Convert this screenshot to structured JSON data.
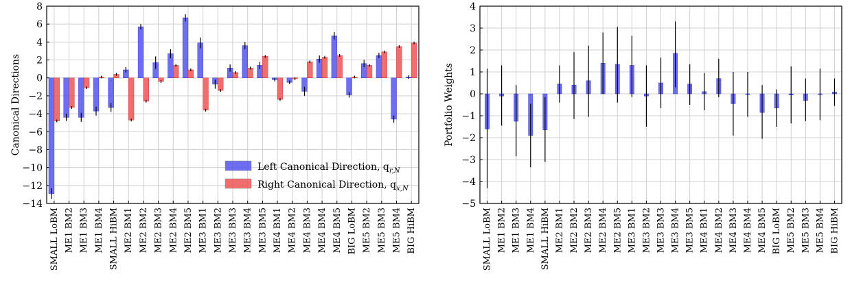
{
  "categories": [
    "SMALL LoBM",
    "ME1 BM2",
    "ME1 BM3",
    "ME1 BM4",
    "SMALL HiBM",
    "ME2 BM1",
    "ME2 BM2",
    "ME2 BM3",
    "ME2 BM4",
    "ME2 BM5",
    "ME3 BM1",
    "ME3 BM2",
    "ME3 BM3",
    "ME3 BM4",
    "ME3 BM5",
    "ME4 BM1",
    "ME4 BM2",
    "ME4 BM3",
    "ME4 BM4",
    "ME4 BM5",
    "BIG LoBM",
    "ME5 BM2",
    "ME5 BM3",
    "ME5 BM4",
    "BIG HiBM"
  ],
  "colors": {
    "left": "#5555ee",
    "right": "#ee5555",
    "weights": "#5555ee"
  },
  "chart_data": [
    {
      "type": "bar",
      "ylabel": "Canonical Directions",
      "xlabel": "",
      "ylim": [
        -14,
        8
      ],
      "yticks": [
        -14,
        -12,
        -10,
        -8,
        -6,
        -4,
        -2,
        0,
        2,
        4,
        6,
        8
      ],
      "ytick_labels": [
        "−14",
        "−12",
        "−10",
        "−8",
        "−6",
        "−4",
        "−2",
        "0",
        "2",
        "4",
        "6",
        "8"
      ],
      "grid": true,
      "legend_position": "lower-right",
      "series": [
        {
          "name": "Left Canonical Direction, q",
          "name_sub": "r,N",
          "values": [
            -12.9,
            -4.4,
            -4.4,
            -3.7,
            -3.3,
            0.9,
            5.7,
            1.7,
            2.7,
            6.7,
            3.9,
            -0.7,
            1.1,
            3.6,
            1.4,
            -0.2,
            -0.5,
            -1.5,
            2.1,
            4.7,
            -1.9,
            1.6,
            2.5,
            -4.6,
            0.1
          ],
          "errors": [
            0.6,
            0.4,
            0.5,
            0.5,
            0.5,
            0.3,
            0.3,
            0.7,
            0.5,
            0.4,
            0.6,
            0.5,
            0.4,
            0.4,
            0.4,
            0.2,
            0.2,
            0.5,
            0.4,
            0.4,
            0.3,
            0.4,
            0.3,
            0.4,
            0.2
          ]
        },
        {
          "name": "Right Canonical Direction, q",
          "name_sub": "x,N",
          "values": [
            -4.8,
            -3.3,
            -1.1,
            0.1,
            0.4,
            -4.7,
            -2.6,
            -0.4,
            1.4,
            0.9,
            -3.6,
            -1.4,
            0.6,
            1.1,
            2.4,
            -2.4,
            -0.1,
            1.8,
            2.3,
            2.5,
            0.1,
            1.4,
            2.9,
            3.5,
            3.9
          ]
        }
      ]
    },
    {
      "type": "bar",
      "ylabel": "Portfolio Weights",
      "xlabel": "",
      "ylim": [
        -5,
        4
      ],
      "yticks": [
        -5,
        -4,
        -3,
        -2,
        -1,
        0,
        1,
        2,
        3,
        4
      ],
      "ytick_labels": [
        "−5",
        "−4",
        "−3",
        "−2",
        "−1",
        "0",
        "1",
        "2",
        "3",
        "4"
      ],
      "grid": true,
      "series": [
        {
          "values": [
            -1.6,
            -0.1,
            -1.25,
            -1.9,
            -1.65,
            0.45,
            0.4,
            0.6,
            1.4,
            1.35,
            1.3,
            -0.1,
            0.5,
            1.85,
            0.45,
            0.1,
            0.7,
            -0.45,
            -0.03,
            -0.85,
            -0.65,
            -0.05,
            -0.3,
            -0.03,
            0.08
          ],
          "err_low": [
            -4.3,
            -1.45,
            -2.85,
            -3.35,
            -3.1,
            -0.4,
            -1.15,
            -1.05,
            0.0,
            -0.4,
            -0.15,
            -1.5,
            -0.65,
            0.3,
            -0.5,
            -0.75,
            -0.15,
            -1.9,
            -1.05,
            -2.05,
            -1.5,
            -1.35,
            -1.25,
            -1.2,
            -0.55
          ],
          "err_high": [
            1.15,
            1.3,
            0.4,
            -0.45,
            -0.15,
            1.3,
            1.9,
            2.2,
            2.8,
            3.05,
            2.65,
            1.3,
            1.65,
            3.3,
            1.35,
            0.95,
            1.6,
            1.0,
            1.0,
            0.4,
            0.2,
            1.25,
            0.7,
            1.15,
            0.7
          ]
        }
      ]
    }
  ]
}
